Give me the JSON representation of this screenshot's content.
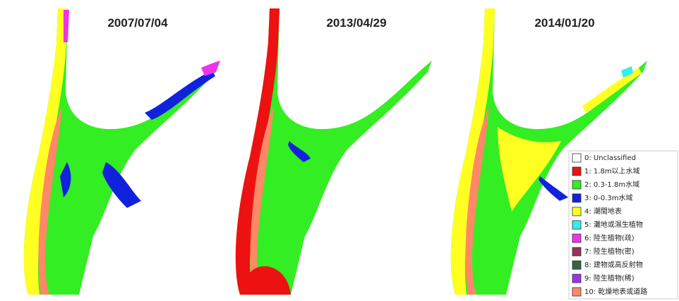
{
  "panels": [
    {
      "date": "2007/07/04"
    },
    {
      "date": "2013/04/29"
    },
    {
      "date": "2014/01/20"
    }
  ],
  "legend": {
    "items": [
      {
        "label": "0: Unclassified",
        "color": "#ffffff"
      },
      {
        "label": "1: 1.8m以上水域",
        "color": "#ee1111"
      },
      {
        "label": "2: 0.3-1.8m水域",
        "color": "#33ee22"
      },
      {
        "label": "3: 0-0.3m水域",
        "color": "#1122dd"
      },
      {
        "label": "4: 潮間地表",
        "color": "#ffff22"
      },
      {
        "label": "5: 灘地或濕生植物",
        "color": "#33eeee"
      },
      {
        "label": "6: 陸生植物(疏)",
        "color": "#ee33ee"
      },
      {
        "label": "7: 陸生植物(密)",
        "color": "#993355"
      },
      {
        "label": "8: 建物或高反射物",
        "color": "#336644"
      },
      {
        "label": "9: 陸生植物(稀)",
        "color": "#9933ee"
      },
      {
        "label": "10: 乾燥地表或道路",
        "color": "#ff8866"
      }
    ]
  }
}
